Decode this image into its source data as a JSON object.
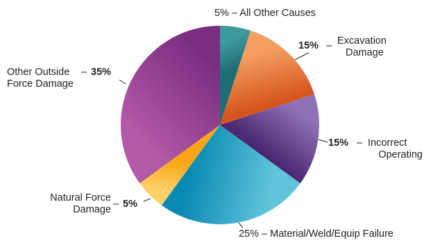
{
  "chart_data": {
    "type": "pie",
    "start_angle_deg": 0,
    "direction": "clockwise",
    "slices": [
      {
        "label": "All Other Causes",
        "value": 5,
        "value_label": "5%",
        "label_lines": [
          "All Other Causes"
        ],
        "color": "#1f6e73",
        "color_light": "#3f9a9e"
      },
      {
        "label": "Excavation Damage",
        "value": 15,
        "value_label": "15%",
        "label_lines": [
          "Excavation",
          "Damage"
        ],
        "color": "#d5541c",
        "color_light": "#f5a062"
      },
      {
        "label": "Incorrect Operating",
        "value": 15,
        "value_label": "15%",
        "label_lines": [
          "Incorrect",
          "Operating"
        ],
        "color": "#4b2872",
        "color_light": "#8f72b5"
      },
      {
        "label": "Material/Weld/Equip Failure",
        "value": 25,
        "value_label": "25%",
        "label_lines": [
          "Material/Weld/Equip Failure"
        ],
        "color": "#0a8ab3",
        "color_light": "#5fc3da"
      },
      {
        "label": "Natural Force Damage",
        "value": 5,
        "value_label": "5%",
        "label_lines": [
          "Natural Force",
          "Damage"
        ],
        "color": "#f8a516",
        "color_light": "#ffd066"
      },
      {
        "label": "Other Outside Force Damage",
        "value": 35,
        "value_label": "35%",
        "label_lines": [
          "Other Outside",
          "Force Damage"
        ],
        "color": "#7b2e7f",
        "color_light": "#b45aa8"
      }
    ],
    "separator": "–"
  }
}
